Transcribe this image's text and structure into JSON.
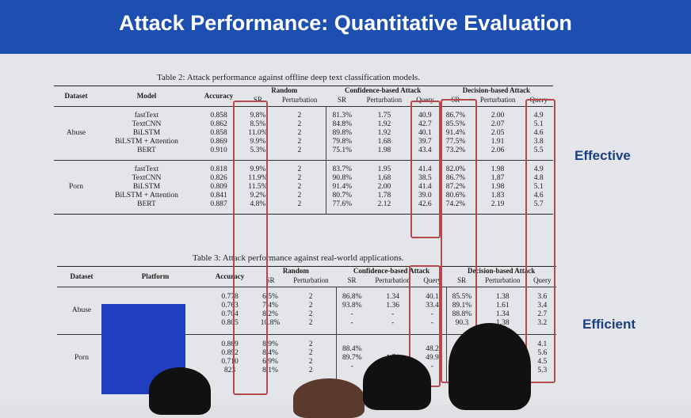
{
  "title": "Attack Performance: Quantitative Evaluation",
  "side_labels": {
    "effective": "Effective",
    "efficient": "Efficient"
  },
  "table2": {
    "caption": "Table 2: Attack performance against offline deep text classification models.",
    "groups": {
      "random": "Random",
      "confidence": "Confidence-based Attack",
      "decision": "Decision-based Attack"
    },
    "headers": {
      "dataset": "Dataset",
      "model": "Model",
      "accuracy": "Accuracy",
      "sr": "SR",
      "perturbation": "Perturbation",
      "query": "Query"
    },
    "blocks": [
      {
        "dataset": "Abuse",
        "models": [
          "fastText",
          "TextCNN",
          "BiLSTM",
          "BiLSTM + Attention",
          "BERT"
        ],
        "accuracy": [
          "0.858",
          "0.862",
          "0.858",
          "0.869",
          "0.910"
        ],
        "rand_sr": [
          "9.8%",
          "8.5%",
          "11.0%",
          "9.9%",
          "5.3%"
        ],
        "rand_pert": [
          "2",
          "2",
          "2",
          "2",
          "2"
        ],
        "conf_sr": [
          "81.3%",
          "84.8%",
          "89.8%",
          "79.8%",
          "75.1%"
        ],
        "conf_pert": [
          "1.75",
          "1.92",
          "1.92",
          "1.68",
          "1.98"
        ],
        "conf_query": [
          "40.9",
          "42.7",
          "40.1",
          "39.7",
          "43.4"
        ],
        "dec_sr": [
          "86.7%",
          "85.5%",
          "91.4%",
          "77.5%",
          "73.2%"
        ],
        "dec_pert": [
          "2.00",
          "2.07",
          "2.05",
          "1.91",
          "2.06"
        ],
        "dec_query": [
          "4.9",
          "5.1",
          "4.6",
          "3.8",
          "5.5"
        ]
      },
      {
        "dataset": "Porn",
        "models": [
          "fastText",
          "TextCNN",
          "BiLSTM",
          "BiLSTM + Attention",
          "BERT"
        ],
        "accuracy": [
          "0.818",
          "0.826",
          "0.809",
          "0.841",
          "0.887"
        ],
        "rand_sr": [
          "9.9%",
          "11.9%",
          "11.5%",
          "9.2%",
          "4.8%"
        ],
        "rand_pert": [
          "2",
          "2",
          "2",
          "2",
          "2"
        ],
        "conf_sr": [
          "83.7%",
          "90.8%",
          "91.4%",
          "80.7%",
          "77.6%"
        ],
        "conf_pert": [
          "1.95",
          "1.68",
          "2.00",
          "1.78",
          "2.12"
        ],
        "conf_query": [
          "41.4",
          "38.5",
          "41.4",
          "39.0",
          "42.6"
        ],
        "dec_sr": [
          "82.0%",
          "86.7%",
          "87.2%",
          "80.6%",
          "74.2%"
        ],
        "dec_pert": [
          "1.98",
          "1.87",
          "1.98",
          "1.83",
          "2.19"
        ],
        "dec_query": [
          "4.9",
          "4.8",
          "5.1",
          "4.6",
          "5.7"
        ]
      }
    ]
  },
  "table3": {
    "caption": "Table 3: Attack performance against real-world applications.",
    "groups": {
      "random": "Random",
      "confidence": "Confidence-based Attack",
      "decision": "Decision-based Attack"
    },
    "headers": {
      "dataset": "Dataset",
      "platform": "Platform",
      "accuracy": "Accuracy",
      "sr": "SR",
      "perturbation": "Perturbation",
      "query": "Query"
    },
    "blocks": [
      {
        "dataset": "Abuse",
        "accuracy": [
          "0.778",
          "0.763",
          "0.704",
          "0.805"
        ],
        "rand_sr": [
          "6.5%",
          "7.4%",
          "8.2%",
          "10.8%"
        ],
        "rand_pert": [
          "2",
          "2",
          "2",
          "2"
        ],
        "conf_sr": [
          "86.8%",
          "93.8%",
          "-",
          "-"
        ],
        "conf_pert": [
          "1.34",
          "1.36",
          "-",
          "-"
        ],
        "conf_query": [
          "40.1",
          "33.4",
          "-",
          "-"
        ],
        "dec_sr": [
          "85.5%",
          "89.1%",
          "88.8%",
          "90.3"
        ],
        "dec_pert": [
          "1.38",
          "1.61",
          "1.34",
          "1.38"
        ],
        "dec_query": [
          "3.6",
          "3.4",
          "2.7",
          "3.2"
        ]
      },
      {
        "dataset": "Porn",
        "accuracy": [
          "0.869",
          "0.892",
          "0.710",
          "823"
        ],
        "rand_sr": [
          "8.9%",
          "8.4%",
          "6.9%",
          "8.1%"
        ],
        "rand_pert": [
          "2",
          "2",
          "2",
          "2"
        ],
        "conf_sr": [
          "88.4%",
          "89.7%",
          "-",
          ""
        ],
        "conf_pert": [
          "1.71",
          "",
          "",
          ""
        ],
        "conf_query": [
          "48.2",
          "49.9",
          "-",
          ""
        ],
        "dec_sr": [
          "",
          "",
          "",
          ""
        ],
        "dec_pert": [
          "",
          "",
          "",
          ""
        ],
        "dec_query": [
          "4.1",
          "5.6",
          "4.5",
          "5.3"
        ]
      }
    ]
  }
}
